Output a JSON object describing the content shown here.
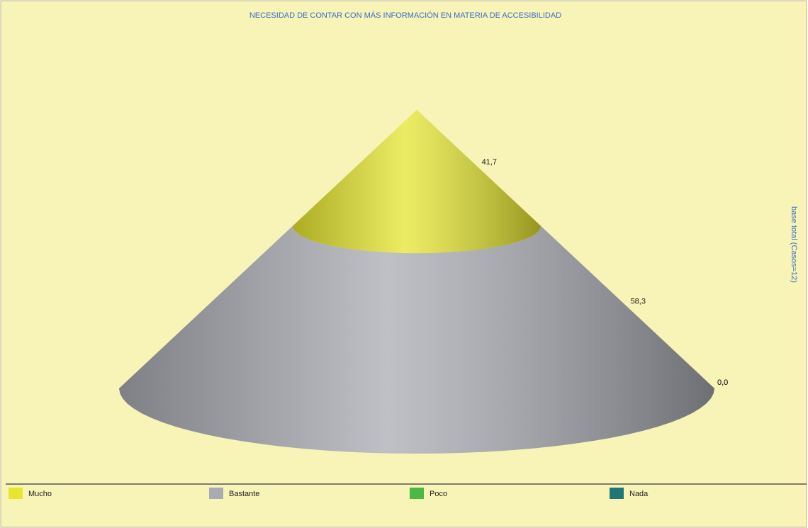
{
  "chart_data": {
    "type": "cone",
    "title": "NECESIDAD DE CONTAR CON MÁS INFORMACIÓN EN MATERIA DE ACCESIBILIDAD",
    "side_label": "base total (Casos=12)",
    "series": [
      {
        "name": "Mucho",
        "color": "#e6e630",
        "values": [
          41.7
        ],
        "value_labels": [
          "41,7"
        ]
      },
      {
        "name": "Bastante",
        "color": "#a9abb2",
        "values": [
          58.3
        ],
        "value_labels": [
          "58,3"
        ]
      },
      {
        "name": "Poco",
        "color": "#4bb848",
        "values": [
          0.0
        ],
        "value_labels": [
          "0,0"
        ]
      },
      {
        "name": "Nada",
        "color": "#1f7878",
        "values": [
          0.0
        ],
        "value_labels": [
          "0,0"
        ]
      }
    ],
    "legend": "bottom"
  }
}
